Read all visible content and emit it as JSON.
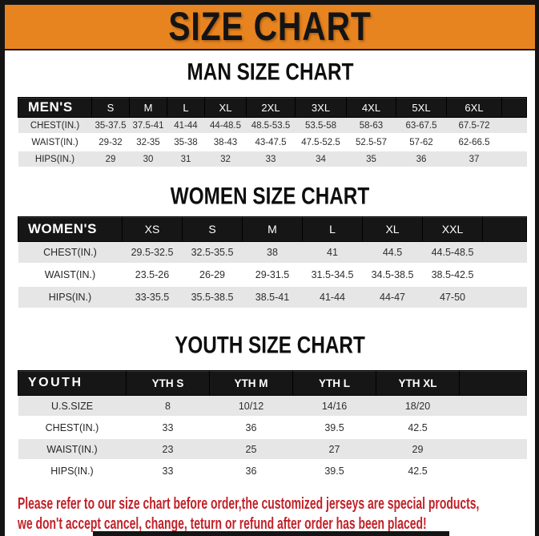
{
  "banner": {
    "title": "SIZE CHART"
  },
  "colors": {
    "banner_orange": "#e88420",
    "frame_black": "#141414",
    "table_header_black": "#161616",
    "stripe_gray": "#e6e6e6",
    "note_red": "#c22128"
  },
  "charts": [
    {
      "heading": "MAN SIZE CHART",
      "header": [
        "MEN'S",
        "S",
        "M",
        "L",
        "XL",
        "2XL",
        "3XL",
        "4XL",
        "5XL",
        "6XL"
      ],
      "rows": [
        {
          "label": "CHEST(IN.)",
          "values": [
            "35-37.5",
            "37.5-41",
            "41-44",
            "44-48.5",
            "48.5-53.5",
            "53.5-58",
            "58-63",
            "63-67.5",
            "67.5-72"
          ]
        },
        {
          "label": "WAIST(IN.)",
          "values": [
            "29-32",
            "32-35",
            "35-38",
            "38-43",
            "43-47.5",
            "47.5-52.5",
            "52.5-57",
            "57-62",
            "62-66.5"
          ]
        },
        {
          "label": "HIPS(IN.)",
          "values": [
            "29",
            "30",
            "31",
            "32",
            "33",
            "34",
            "35",
            "36",
            "37"
          ]
        }
      ]
    },
    {
      "heading": "WOMEN SIZE CHART",
      "header": [
        "WOMEN'S",
        "XS",
        "S",
        "M",
        "L",
        "XL",
        "XXL"
      ],
      "rows": [
        {
          "label": "CHEST(IN.)",
          "values": [
            "29.5-32.5",
            "32.5-35.5",
            "38",
            "41",
            "44.5",
            "44.5-48.5"
          ]
        },
        {
          "label": "WAIST(IN.)",
          "values": [
            "23.5-26",
            "26-29",
            "29-31.5",
            "31.5-34.5",
            "34.5-38.5",
            "38.5-42.5"
          ]
        },
        {
          "label": "HIPS(IN.)",
          "values": [
            "33-35.5",
            "35.5-38.5",
            "38.5-41",
            "41-44",
            "44-47",
            "47-50"
          ]
        }
      ]
    },
    {
      "heading": "YOUTH SIZE CHART",
      "header": [
        "YOUTH",
        "YTH S",
        "YTH M",
        "YTH L",
        "YTH XL"
      ],
      "rows": [
        {
          "label": "U.S.SIZE",
          "values": [
            "8",
            "10/12",
            "14/16",
            "18/20"
          ]
        },
        {
          "label": "CHEST(IN.)",
          "values": [
            "33",
            "36",
            "39.5",
            "42.5"
          ]
        },
        {
          "label": "WAIST(IN.)",
          "values": [
            "23",
            "25",
            "27",
            "29"
          ]
        },
        {
          "label": "HIPS(IN.)",
          "values": [
            "33",
            "36",
            "39.5",
            "42.5"
          ]
        }
      ]
    }
  ],
  "note": {
    "line1": "Please refer to our size chart before order,the customized jerseys are special products,",
    "line2": "we don't accept cancel, change, teturn or refund after order has been placed!"
  }
}
